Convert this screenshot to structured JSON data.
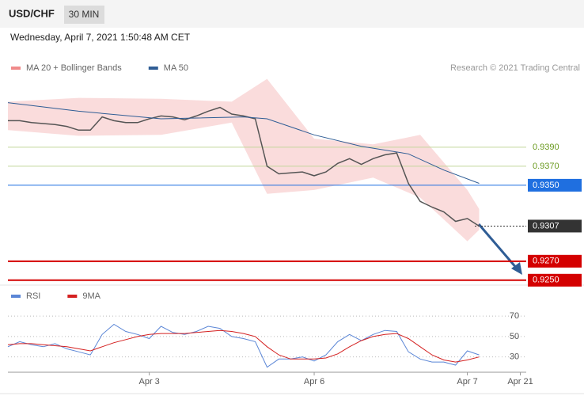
{
  "header": {
    "symbol": "USD/CHF",
    "interval": "30 MIN",
    "timestamp": "Wednesday, April 7, 2021 1:50:48 AM CET",
    "credit": "Research © 2021 Trading Central"
  },
  "chart_data": [
    {
      "type": "line",
      "ylim": [
        0.9249,
        0.9465
      ],
      "xlim": [
        0,
        44
      ],
      "series": [
        {
          "color": "#555555",
          "values": [
            0.9418,
            0.9418,
            0.9416,
            0.9415,
            0.9414,
            0.9412,
            0.9408,
            0.9408,
            0.9422,
            0.9418,
            0.9416,
            0.9416,
            0.942,
            0.9423,
            0.9422,
            0.9419,
            0.9423,
            0.9428,
            0.9432,
            0.9425,
            0.9423,
            0.942,
            0.937,
            0.9362,
            0.9363,
            0.9364,
            0.936,
            0.9364,
            0.9373,
            0.9378,
            0.9372,
            0.9378,
            0.9382,
            0.9384,
            0.9352,
            0.9333,
            0.9327,
            0.9322,
            0.9312,
            0.9315,
            0.9307
          ]
        },
        {
          "name": "MA 50",
          "color": "#2f5d95",
          "x": [
            0,
            6,
            13,
            20,
            22,
            26,
            30,
            34,
            37,
            40
          ],
          "values": [
            0.9437,
            0.9428,
            0.942,
            0.9422,
            0.942,
            0.9403,
            0.9391,
            0.9383,
            0.9366,
            0.9352
          ]
        }
      ],
      "band": {
        "name": "MA 20 + Bollinger Bands",
        "color": "#f08a8a",
        "x": [
          0,
          6,
          13,
          19,
          22,
          26,
          31,
          35,
          39,
          40
        ],
        "upper": [
          0.9438,
          0.9442,
          0.9441,
          0.9438,
          0.9462,
          0.9399,
          0.9393,
          0.9403,
          0.9345,
          0.9325
        ],
        "lower": [
          0.9408,
          0.9402,
          0.9403,
          0.9416,
          0.9341,
          0.9345,
          0.9358,
          0.9337,
          0.9291,
          0.9303
        ]
      },
      "levels": [
        {
          "value": 0.939,
          "label": "0.9390",
          "color": "#6a9a1f",
          "boxed": false
        },
        {
          "value": 0.937,
          "label": "0.9370",
          "color": "#6a9a1f",
          "boxed": false
        },
        {
          "value": 0.935,
          "label": "0.9350",
          "color": "#1f6fe0",
          "boxed": true
        },
        {
          "value": 0.9307,
          "label": "0.9307",
          "color": "#333333",
          "boxed": true,
          "dashed": true
        },
        {
          "value": 0.927,
          "label": "0.9270",
          "color": "#d40000",
          "boxed": true
        },
        {
          "value": 0.925,
          "label": "0.9250",
          "color": "#d40000",
          "boxed": true
        }
      ]
    },
    {
      "type": "line",
      "ylim": [
        15,
        81
      ],
      "yticks": [
        30,
        50,
        70
      ],
      "xlim": [
        0,
        44
      ],
      "xticks": [
        {
          "value": 12,
          "label": "Apr 3"
        },
        {
          "value": 26,
          "label": "Apr 6"
        },
        {
          "value": 39,
          "label": "Apr 7"
        },
        {
          "value": 43.5,
          "label": "Apr 21"
        }
      ],
      "series": [
        {
          "name": "RSI",
          "color": "#5b86d6",
          "values": [
            40,
            45,
            42,
            40,
            43,
            38,
            35,
            32,
            52,
            62,
            55,
            52,
            48,
            60,
            54,
            52,
            55,
            60,
            58,
            50,
            48,
            45,
            20,
            28,
            28,
            30,
            26,
            32,
            45,
            52,
            46,
            52,
            56,
            55,
            35,
            28,
            25,
            25,
            22,
            36,
            32
          ]
        },
        {
          "name": "9MA",
          "color": "#d42020",
          "values": [
            42,
            43,
            43,
            42,
            41,
            40,
            38,
            36,
            40,
            44,
            47,
            50,
            52,
            53,
            53,
            53,
            54,
            55,
            56,
            55,
            53,
            50,
            40,
            32,
            28,
            28,
            28,
            29,
            33,
            40,
            46,
            50,
            52,
            53,
            48,
            40,
            32,
            27,
            25,
            27,
            30
          ]
        }
      ]
    }
  ]
}
